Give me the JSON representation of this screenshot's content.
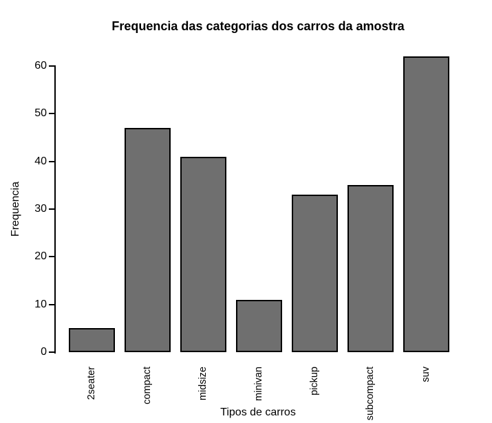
{
  "chart_data": {
    "type": "bar",
    "title": "Frequencia das categorias dos carros da amostra",
    "xlabel": "Tipos de carros",
    "ylabel": "Frequencia",
    "categories": [
      "2seater",
      "compact",
      "midsize",
      "minivan",
      "pickup",
      "subcompact",
      "suv"
    ],
    "values": [
      5,
      47,
      41,
      11,
      33,
      35,
      62
    ],
    "yticks": [
      0,
      10,
      20,
      30,
      40,
      50,
      60
    ],
    "ylim": [
      0,
      62
    ],
    "grid": false,
    "legend": "none",
    "colors": {
      "bar_fill": "#6f6f6f",
      "bar_border": "#000000",
      "axis": "#000000",
      "text": "#000000",
      "background": "#ffffff"
    }
  }
}
